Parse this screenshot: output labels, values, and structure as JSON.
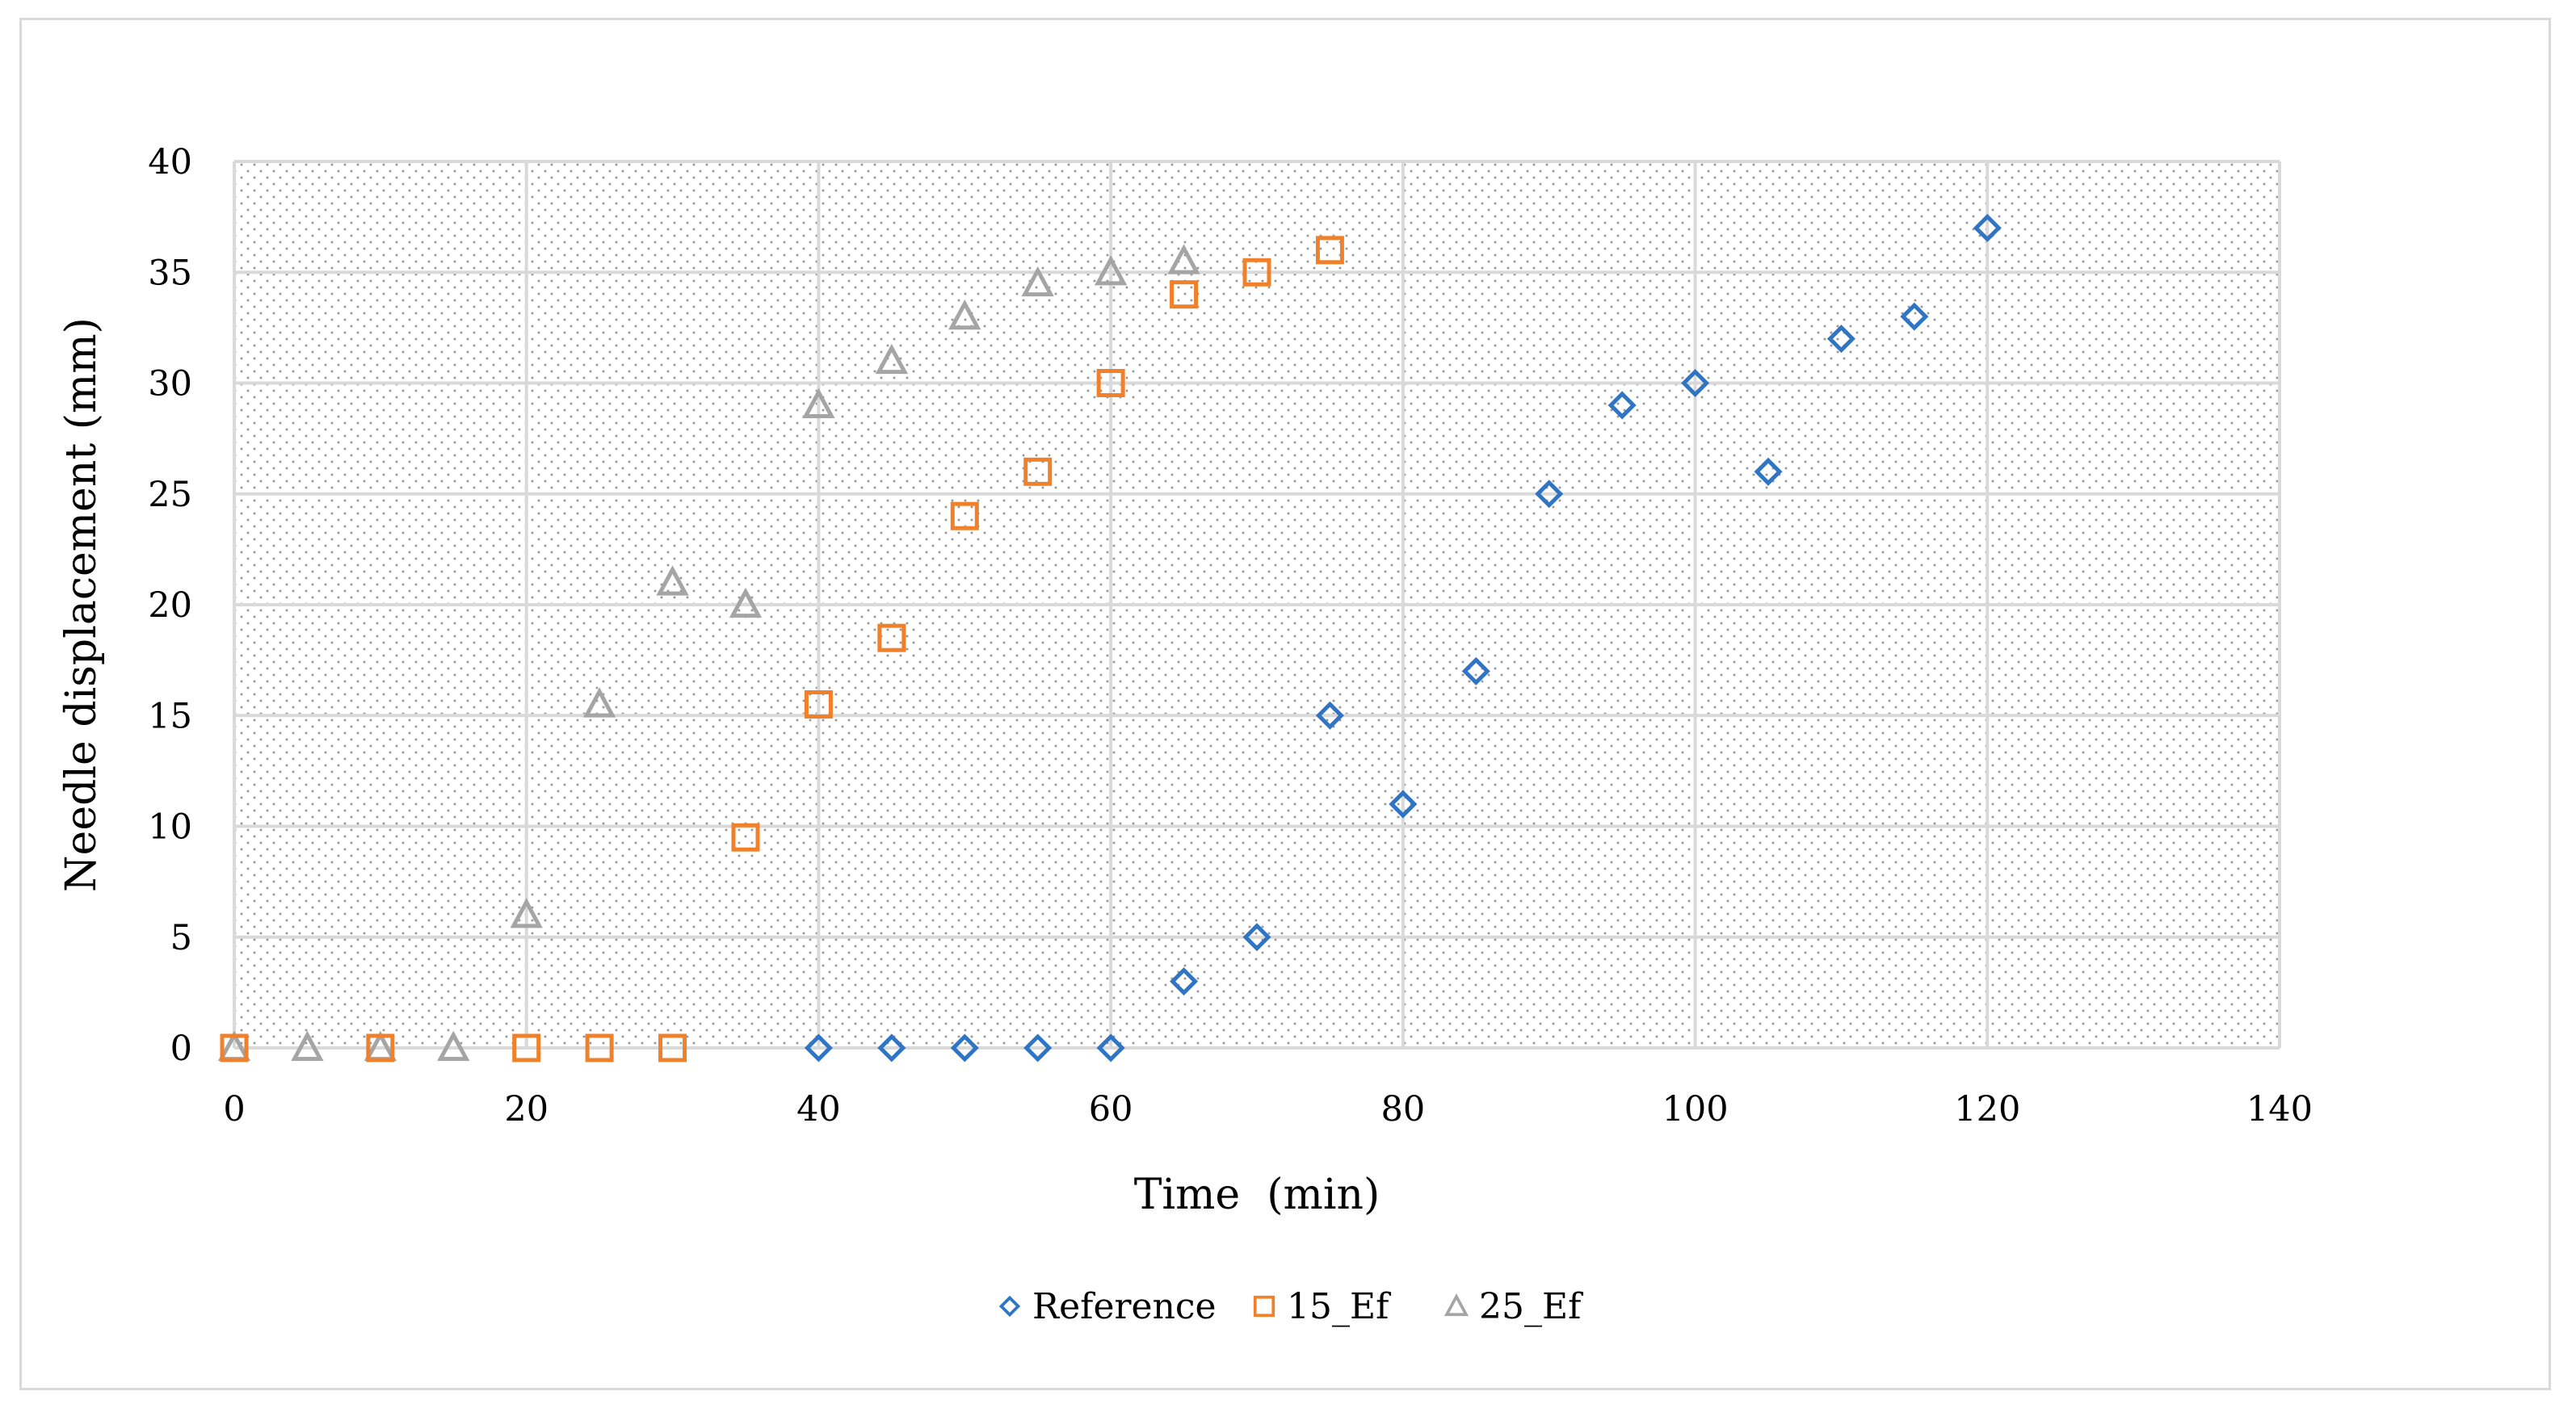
{
  "chart_data": {
    "type": "scatter",
    "title": "",
    "xlabel": "Time  (min)",
    "ylabel": "Needle displacement (mm)",
    "xlim": [
      0,
      140
    ],
    "ylim": [
      0,
      40
    ],
    "xticks": [
      0,
      20,
      40,
      60,
      80,
      100,
      120,
      140
    ],
    "yticks": [
      0,
      5,
      10,
      15,
      20,
      25,
      30,
      35,
      40
    ],
    "grid": true,
    "legend_position": "bottom",
    "series": [
      {
        "name": "Reference",
        "marker": "diamond",
        "color": "#2e75c6",
        "x": [
          40,
          45,
          50,
          55,
          60,
          65,
          70,
          75,
          80,
          85,
          90,
          95,
          100,
          105,
          110,
          115,
          120
        ],
        "y": [
          0,
          0,
          0,
          0,
          0,
          3,
          5,
          15,
          11,
          17,
          25,
          29,
          30,
          26,
          32,
          33,
          37
        ]
      },
      {
        "name": "15_Ef",
        "marker": "square",
        "color": "#f0812a",
        "x": [
          0,
          10,
          20,
          25,
          30,
          35,
          40,
          45,
          50,
          55,
          60,
          65,
          70,
          75
        ],
        "y": [
          0,
          0,
          0,
          0,
          0,
          9.5,
          15.5,
          18.5,
          24,
          26,
          30,
          34,
          35,
          36
        ]
      },
      {
        "name": "25_Ef",
        "marker": "triangle",
        "color": "#a5a5a5",
        "x": [
          0,
          5,
          10,
          15,
          20,
          25,
          30,
          35,
          40,
          45,
          50,
          55,
          60,
          65
        ],
        "y": [
          0,
          0,
          0,
          0,
          6,
          15.5,
          21,
          20,
          29,
          31,
          33,
          34.5,
          35,
          35.5
        ]
      }
    ]
  }
}
